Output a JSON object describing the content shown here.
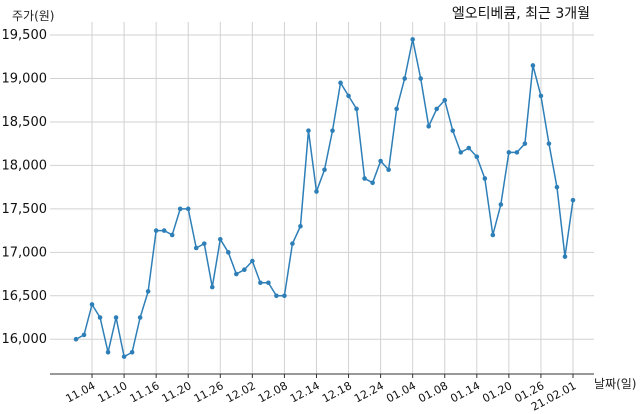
{
  "chart_data": {
    "type": "line",
    "title": "엘오티베큠, 최근 3개월",
    "xlabel": "날짜(일)",
    "ylabel": "주가(원)",
    "ylim": [
      15600,
      19650
    ],
    "yticks": [
      16000,
      16500,
      17000,
      17500,
      18000,
      18500,
      19000,
      19500
    ],
    "ytick_labels": [
      "16,000",
      "16,500",
      "17,000",
      "17,500",
      "18,000",
      "18,500",
      "19,000",
      "19,500"
    ],
    "xticks": [
      {
        "index": 2,
        "label": "11.04"
      },
      {
        "index": 6,
        "label": "11.10"
      },
      {
        "index": 10,
        "label": "11.16"
      },
      {
        "index": 14,
        "label": "11.20"
      },
      {
        "index": 18,
        "label": "11.26"
      },
      {
        "index": 22,
        "label": "12.02"
      },
      {
        "index": 26,
        "label": "12.08"
      },
      {
        "index": 30,
        "label": "12.14"
      },
      {
        "index": 34,
        "label": "12.18"
      },
      {
        "index": 38,
        "label": "12.24"
      },
      {
        "index": 42,
        "label": "01.04"
      },
      {
        "index": 46,
        "label": "01.08"
      },
      {
        "index": 50,
        "label": "01.14"
      },
      {
        "index": 54,
        "label": "01.20"
      },
      {
        "index": 58,
        "label": "01.26"
      },
      {
        "index": 62,
        "label": "21.02.01"
      }
    ],
    "grid": true,
    "color": "#2e7fb8",
    "series": [
      {
        "values": [
          16000,
          16050,
          16400,
          16250,
          15850,
          16250,
          15800,
          15850,
          16250,
          16550,
          17250,
          17250,
          17200,
          17500,
          17500,
          17050,
          17100,
          16600,
          17150,
          17000,
          16750,
          16800,
          16900,
          16650,
          16650,
          16500,
          16500,
          17100,
          17300,
          18400,
          17700,
          17950,
          18400,
          18950,
          18800,
          18650,
          17850,
          17800,
          18050,
          17950,
          18650,
          19000,
          19450,
          19000,
          18450,
          18650,
          18750,
          18400,
          18150,
          18200,
          18100,
          17850,
          17200,
          17550,
          18150,
          18150,
          18250,
          19150,
          18800,
          18250,
          17750,
          16950,
          17600
        ]
      }
    ]
  }
}
